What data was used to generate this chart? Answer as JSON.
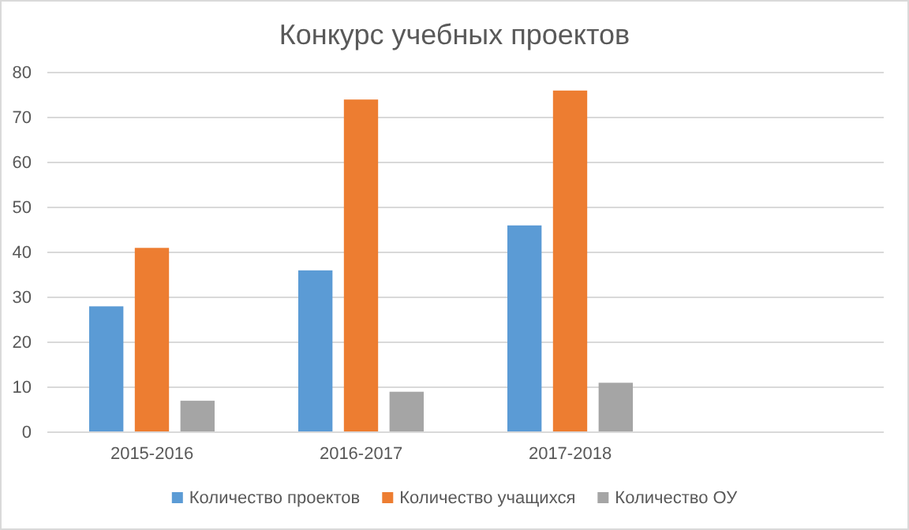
{
  "chart_data": {
    "type": "bar",
    "title": "Конкурс учебных проектов",
    "categories": [
      "2015-2016",
      "2016-2017",
      "2017-2018",
      null
    ],
    "series": [
      {
        "name": "Количество проектов",
        "color": "#5b9bd5",
        "values": [
          28,
          36,
          46,
          null
        ]
      },
      {
        "name": "Количество учащихся",
        "color": "#ed7d31",
        "values": [
          41,
          74,
          76,
          null
        ]
      },
      {
        "name": "Количество ОУ",
        "color": "#a5a5a5",
        "values": [
          7,
          9,
          11,
          null
        ]
      }
    ],
    "ylim": [
      0,
      80
    ],
    "yticks": [
      0,
      10,
      20,
      30,
      40,
      50,
      60,
      70,
      80
    ],
    "grid": "y",
    "legend": "bottom"
  }
}
